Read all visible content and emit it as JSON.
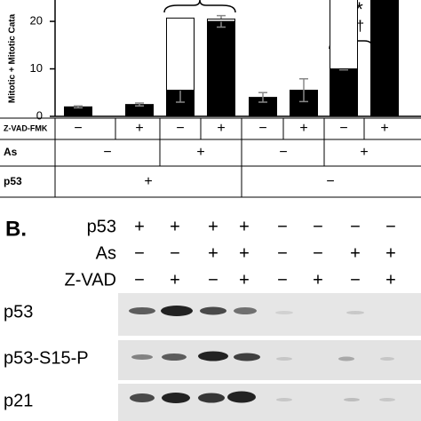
{
  "chart_data": {
    "type": "bar",
    "stacked": true,
    "ylabel": "Mitotic + Mitotic Cata",
    "ylim": [
      0,
      24.5
    ],
    "yticks": [
      0,
      10,
      20
    ],
    "series": [
      {
        "color": "#000000",
        "values": [
          2,
          2.5,
          5.5,
          20,
          4,
          5.5,
          10,
          26
        ],
        "errors": [
          0.2,
          0.3,
          2.5,
          1.2,
          1,
          2.4,
          0.2,
          null
        ]
      },
      {
        "color": "#ffffff",
        "values": [
          0,
          0,
          15.2,
          0.5,
          0,
          0,
          15,
          0
        ]
      }
    ],
    "annotations": [
      "***",
      "†††"
    ]
  },
  "conditions": {
    "rows": [
      {
        "label": "Z-VAD-FMK",
        "cells": [
          "−",
          "+",
          "−",
          "+",
          "−",
          "+",
          "−",
          "+"
        ]
      },
      {
        "label": "As",
        "cells": [
          "−",
          "+",
          "−",
          "+"
        ]
      },
      {
        "label": "p53",
        "cells": [
          "+",
          "−"
        ]
      }
    ]
  },
  "blot": {
    "title": "B.",
    "conditions": [
      {
        "label": "p53",
        "signs": [
          "+",
          "+",
          "+",
          "+",
          "−",
          "−",
          "−",
          "−"
        ]
      },
      {
        "label": "As",
        "signs": [
          "−",
          "−",
          "+",
          "+",
          "−",
          "−",
          "+",
          "+"
        ]
      },
      {
        "label": "Z-VAD",
        "signs": [
          "−",
          "+",
          "−",
          "+",
          "−",
          "+",
          "−",
          "+"
        ]
      }
    ],
    "bands": [
      "p53",
      "p53-S15-P",
      "p21"
    ]
  }
}
